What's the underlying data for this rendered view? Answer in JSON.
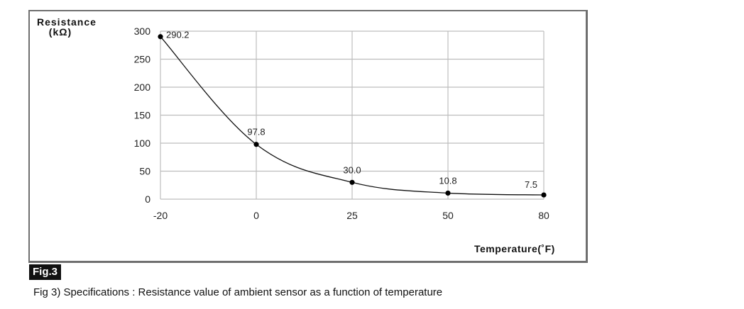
{
  "chart_data": {
    "type": "line",
    "categories": [
      "-20",
      "0",
      "25",
      "50",
      "80"
    ],
    "values": [
      290.2,
      97.8,
      30.0,
      10.8,
      7.5
    ],
    "data_labels": [
      "290.2",
      "97.8",
      "30.0",
      "10.8",
      "7.5"
    ],
    "ylabel": "Resistance",
    "ylabel_unit": "(kΩ)",
    "xlabel": "Temperature(˚F)",
    "ylim": [
      0,
      300
    ],
    "yticks": [
      "0",
      "50",
      "100",
      "150",
      "200",
      "250",
      "300"
    ],
    "grid": true,
    "line_color": "#111111",
    "grid_color": "#bdbdbd"
  },
  "figure_label": "Fig.3",
  "caption": "Fig 3) Specifications : Resistance value of ambient sensor as a function of temperature"
}
